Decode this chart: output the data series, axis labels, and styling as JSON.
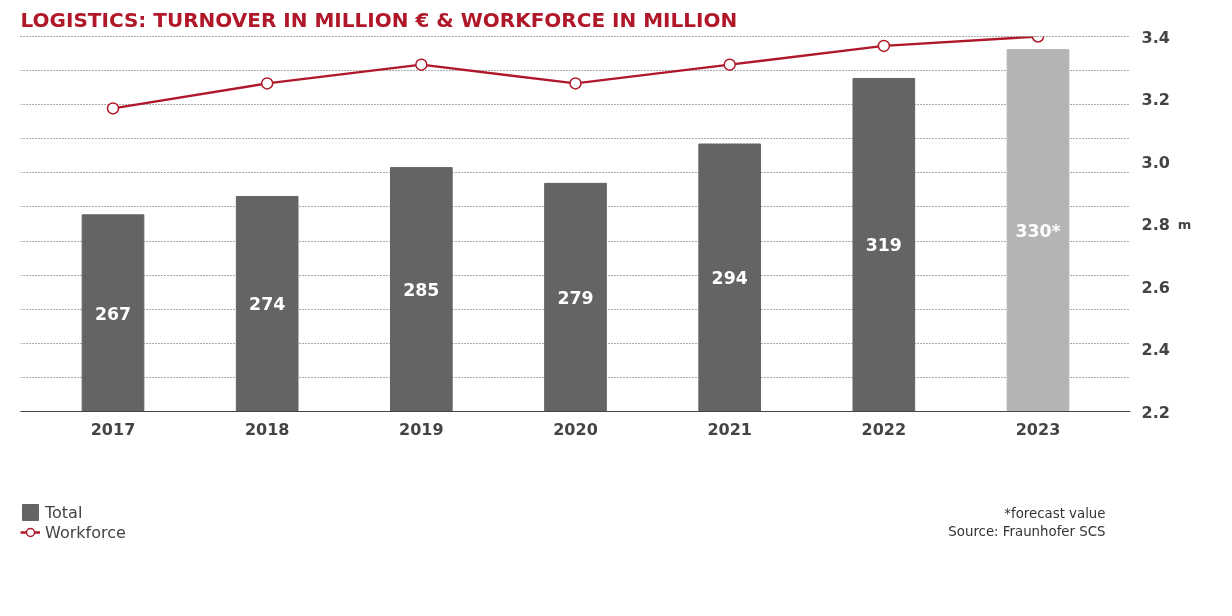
{
  "chart_data": {
    "type": "bar",
    "title": "LOGISTICS: TURNOVER IN MILLION € & WORKFORCE IN MILLION",
    "y2label": "m",
    "categories": [
      "2017",
      "2018",
      "2019",
      "2020",
      "2021",
      "2022",
      "2023"
    ],
    "series": [
      {
        "name": "Total",
        "color": "#646464",
        "colors": [
          "#646464",
          "#646464",
          "#646464",
          "#646464",
          "#646464",
          "#646464",
          "#b4b4b4"
        ],
        "values": [
          267,
          274,
          285,
          279,
          294,
          319,
          330
        ],
        "value_labels": [
          "267",
          "274",
          "285",
          "279",
          "294",
          "319",
          "330*"
        ]
      },
      {
        "name": "Workforce",
        "type": "line",
        "axis": "y2",
        "color": "#b0182a",
        "values": [
          3.17,
          3.25,
          3.31,
          3.25,
          3.31,
          3.37,
          3.4
        ]
      }
    ],
    "ylim": [
      192,
      335
    ],
    "yticks": [
      {
        "value": 192,
        "label": null
      },
      {
        "value": 205,
        "label": null
      },
      {
        "value": 218,
        "label": null
      },
      {
        "value": 231,
        "label": null
      },
      {
        "value": 244,
        "label": null
      },
      {
        "value": 257,
        "label": null
      },
      {
        "value": 270,
        "label": null
      },
      {
        "value": 283,
        "label": null
      },
      {
        "value": 296,
        "label": null
      },
      {
        "value": 309,
        "label": null
      },
      {
        "value": 322,
        "label": null
      },
      {
        "value": 335,
        "label": null
      }
    ],
    "y2lim": [
      2.2,
      3.4
    ],
    "y2ticks": [
      2.2,
      2.4,
      2.6,
      2.8,
      {
        "value": 3.0,
        "label": "3.0"
      },
      3.2,
      3.4
    ],
    "grid": "y",
    "legend": "bottom left",
    "marker": "circle",
    "line_style": "solid",
    "annotations": [
      "*forecast value",
      "Source: Fraunhofer SCS"
    ]
  }
}
